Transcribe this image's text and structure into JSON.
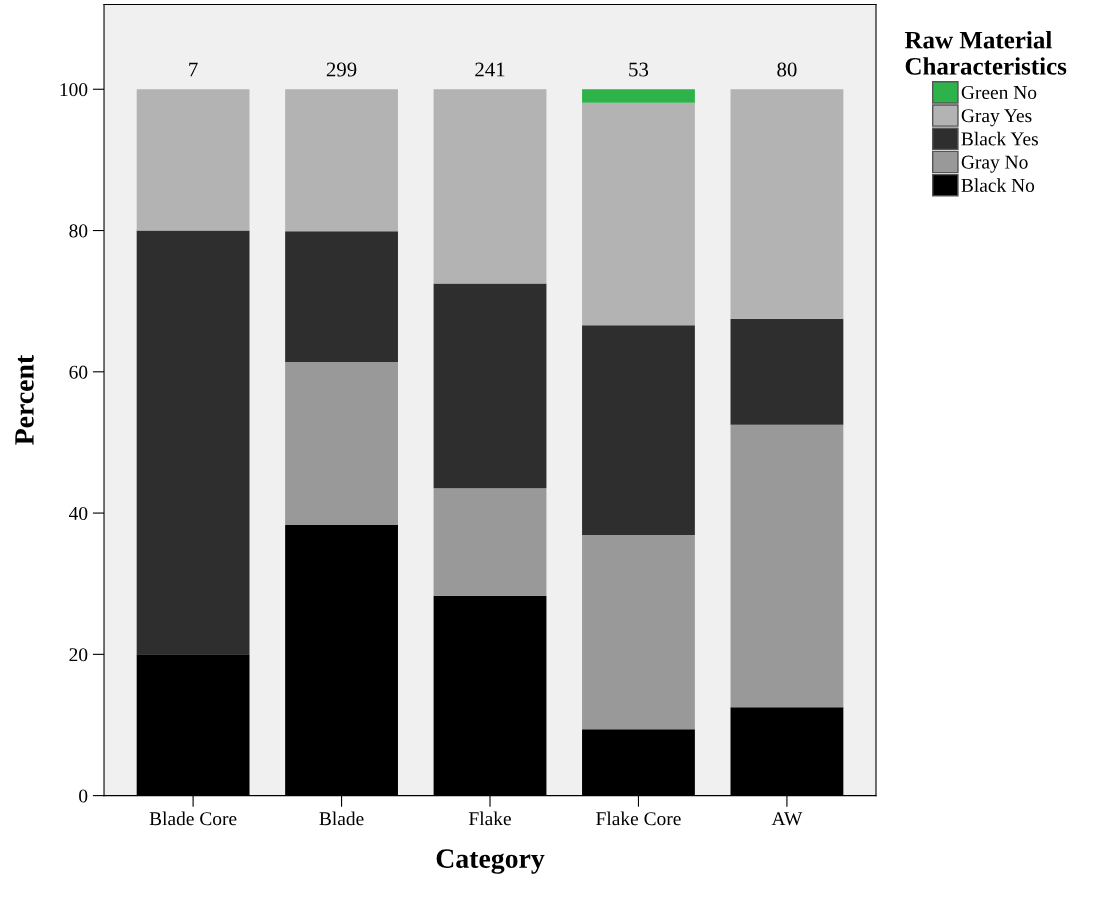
{
  "chart_data": {
    "type": "bar",
    "stacked": true,
    "xlabel": "Category",
    "ylabel": "Percent",
    "legend_title": "Raw Material\nCharacteristics",
    "legend": "right",
    "grid": false,
    "categories": [
      "Blade Core",
      "Blade",
      "Flake",
      "Flake Core",
      "AW"
    ],
    "ylim": [
      0,
      112
    ],
    "yticks": [
      0,
      20,
      40,
      60,
      80,
      100
    ],
    "annotations": [
      {
        "text": "7",
        "x": "Blade Core",
        "y": 100
      },
      {
        "text": "299",
        "x": "Blade",
        "y": 100
      },
      {
        "text": "241",
        "x": "Flake",
        "y": 100
      },
      {
        "text": "53",
        "x": "Flake Core",
        "y": 100
      },
      {
        "text": "80",
        "x": "AW",
        "y": 100
      }
    ],
    "series": [
      {
        "name": "Black No",
        "color": "#000000",
        "values": [
          20,
          38.3,
          28.3,
          9.4,
          12.5
        ]
      },
      {
        "name": "Gray No",
        "color": "#999999",
        "values": [
          0,
          23.1,
          15.2,
          27.5,
          40
        ]
      },
      {
        "name": "Black Yes",
        "color": "#2e2e2e",
        "values": [
          60,
          18.5,
          29.0,
          29.7,
          15
        ]
      },
      {
        "name": "Gray Yes",
        "color": "#b3b3b3",
        "values": [
          20,
          20.1,
          27.5,
          31.5,
          32.5
        ]
      },
      {
        "name": "Green No",
        "color": "#2db34a",
        "values": [
          0,
          0,
          0,
          1.9,
          0
        ]
      }
    ]
  }
}
